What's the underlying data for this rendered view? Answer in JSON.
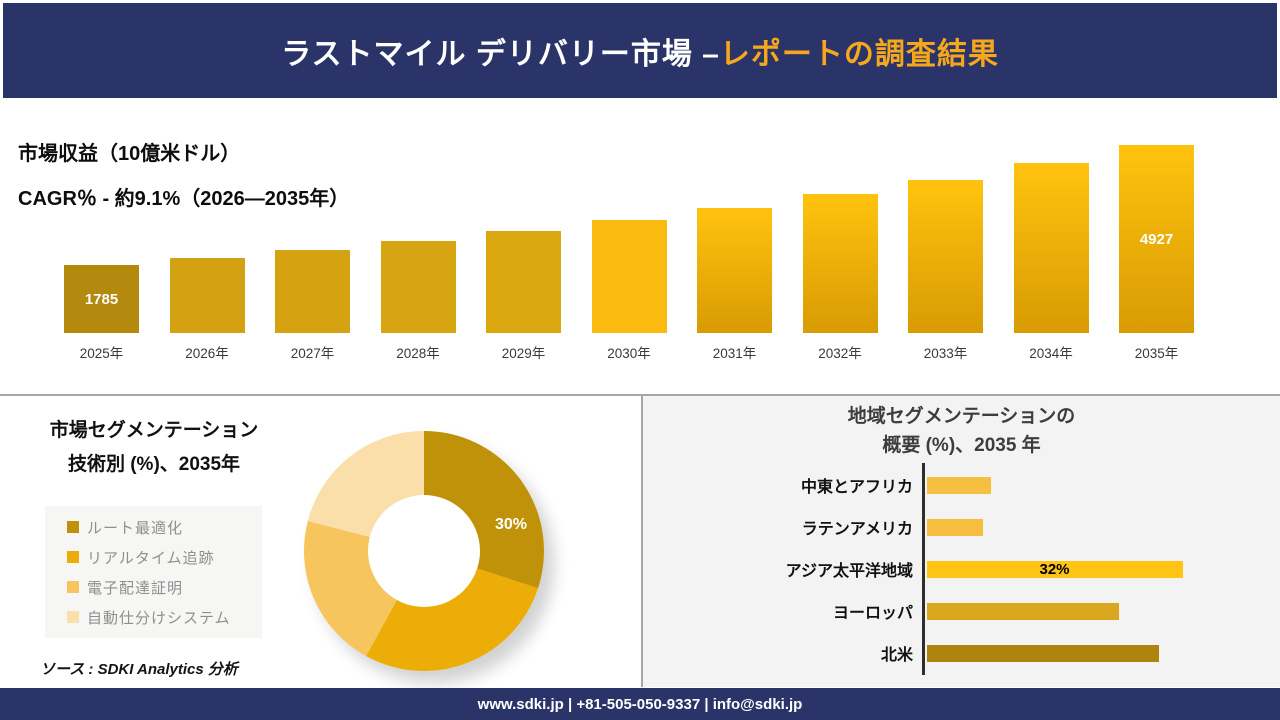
{
  "header": {
    "title_main": "ラストマイル デリバリー市場 –",
    "title_accent": "レポートの調査結果"
  },
  "tech_section": {
    "title_line1": "市場セグメンテーション",
    "title_line2": "技術別 (%)、2035年",
    "source": "ソース : SDKI Analytics 分析"
  },
  "region_section": {
    "title_line1": "地域セグメンテーションの",
    "title_line2": "概要 (%)、2035 年"
  },
  "footer": {
    "text": "www.sdki.jp | +81-505-050-9337 | info@sdki.jp"
  },
  "colors": {
    "navy": "#2B3468",
    "accent_gold": "#F5A81C",
    "divider_gray": "#a6a6a6",
    "panel_gray": "#F3F3F3"
  },
  "chart_data": [
    {
      "id": "revenue-bar-chart",
      "type": "bar",
      "title": "市場収益（10億米ドル）",
      "subtitle": "CAGR％ - 約9.1%（2026―2035年）",
      "categories": [
        "2025年",
        "2026年",
        "2027年",
        "2028年",
        "2029年",
        "2030年",
        "2031年",
        "2032年",
        "2033年",
        "2034年",
        "2035年"
      ],
      "values": [
        1785,
        1976,
        2187,
        2421,
        2680,
        2966,
        3283,
        3634,
        4022,
        4452,
        4927
      ],
      "value_labels": [
        "1785",
        "",
        "",
        "",
        "",
        "",
        "",
        "",
        "",
        "",
        "4927"
      ],
      "ylim": [
        0,
        4927
      ],
      "bar_colors": [
        "#B3890E",
        "#D4A113",
        "#D5A312",
        "#D7A511",
        "#DCA80F",
        "#FBBA10",
        {
          "top": "#FFC30E",
          "bottom": "#D89B04"
        },
        {
          "top": "#FFC30E",
          "bottom": "#D89B04"
        },
        {
          "top": "#FFC30E",
          "bottom": "#D89B04"
        },
        {
          "top": "#FFC30E",
          "bottom": "#D89B04"
        },
        {
          "top": "#FFC30E",
          "bottom": "#D89B04"
        }
      ]
    },
    {
      "id": "tech-donut-chart",
      "type": "pie",
      "title": "市場セグメンテーション 技術別 (%)、2035年",
      "slices": [
        {
          "label": "ルート最適化",
          "value": 30,
          "color": "#C09209",
          "data_label": "30%"
        },
        {
          "label": "リアルタイム追跡",
          "value": 28,
          "color": "#EDAD09",
          "data_label": ""
        },
        {
          "label": "電子配達証明",
          "value": 21,
          "color": "#F7C55E",
          "data_label": ""
        },
        {
          "label": "自動仕分けシステム",
          "value": 21,
          "color": "#FADFAB",
          "data_label": ""
        }
      ],
      "legend_position": "left"
    },
    {
      "id": "region-bar-chart",
      "type": "bar",
      "orientation": "horizontal",
      "title": "地域セグメンテーションの概要 (%)、2035 年",
      "categories": [
        "中東とアフリカ",
        "ラテンアメリカ",
        "アジア太平洋地域",
        "ヨーロッパ",
        "北米"
      ],
      "values": [
        8,
        7,
        32,
        24,
        29
      ],
      "data_labels": [
        "",
        "",
        "32%",
        "",
        ""
      ],
      "colors": [
        "#F7BF3F",
        "#F7BF3F",
        "#FFC414",
        "#D9A81E",
        "#AD850C"
      ],
      "xlim": [
        0,
        34
      ]
    }
  ]
}
